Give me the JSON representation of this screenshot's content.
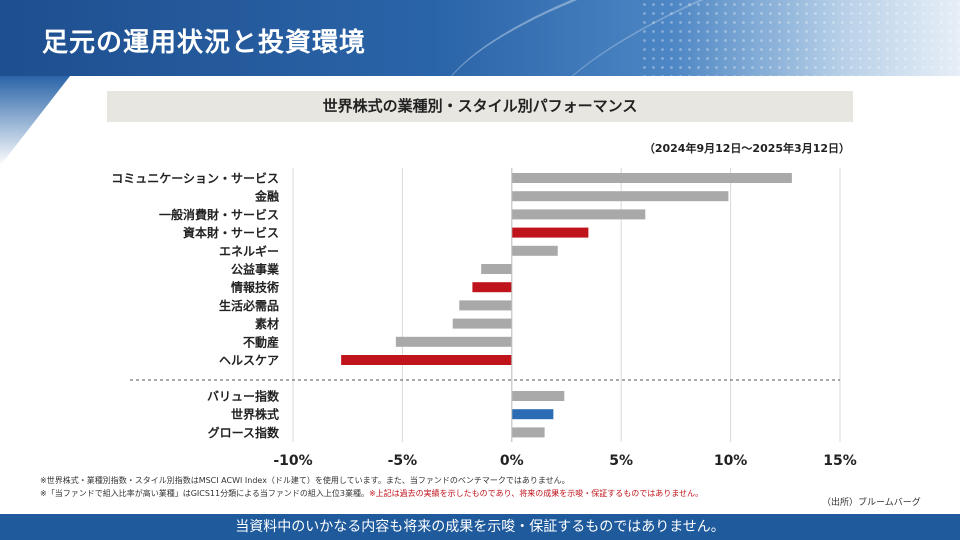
{
  "page": {
    "title": "足元の運用状況と投資環境",
    "footer_disclaimer": "当資料中のいかなる内容も将来の成果を示唆・保証するものではありません。"
  },
  "colors": {
    "gray_bar": "#a9a9a9",
    "red_bar": "#c0141c",
    "blue_bar": "#2b6cb5"
  },
  "chart_data": {
    "type": "bar",
    "orientation": "horizontal",
    "title": "世界株式の業種別・スタイル別パフォーマンス",
    "period": "（2024年9月12日～2025年3月12日）",
    "xlim": [
      -10,
      15
    ],
    "x_ticks": [
      -10,
      -5,
      0,
      5,
      10,
      15
    ],
    "x_tick_labels": [
      "-10%",
      "-5%",
      "0%",
      "5%",
      "10%",
      "15%"
    ],
    "grid": "vertical",
    "groups": [
      {
        "name": "sectors",
        "categories": [
          "コミュニケーション・サービス",
          "金融",
          "一般消費財・サービス",
          "資本財・サービス",
          "エネルギー",
          "公益事業",
          "情報技術",
          "生活必需品",
          "素材",
          "不動産",
          "ヘルスケア"
        ],
        "values": [
          12.8,
          9.9,
          6.1,
          3.5,
          2.1,
          -1.4,
          -1.8,
          -2.4,
          -2.7,
          -5.3,
          -7.8
        ],
        "colors": [
          "gray",
          "gray",
          "gray",
          "red",
          "gray",
          "gray",
          "red",
          "gray",
          "gray",
          "gray",
          "red"
        ]
      },
      {
        "name": "styles",
        "categories": [
          "バリュー指数",
          "世界株式",
          "グロース指数"
        ],
        "values": [
          2.4,
          1.9,
          1.5
        ],
        "colors": [
          "gray",
          "blue",
          "gray"
        ]
      }
    ]
  },
  "notes": {
    "line1": "※世界株式・業種別指数・スタイル別指数はMSCI ACWI Index（ドル建て）を使用しています。また、当ファンドのベンチマークではありません。",
    "line2_black": "※「当ファンドで組入比率が高い業種」はGICS11分類による当ファンドの組入上位3業種。",
    "line2_red": "※上記は過去の実績を示したものであり、将来の成果を示唆・保証するものではありません。"
  },
  "source": "（出所）ブルームバーグ"
}
